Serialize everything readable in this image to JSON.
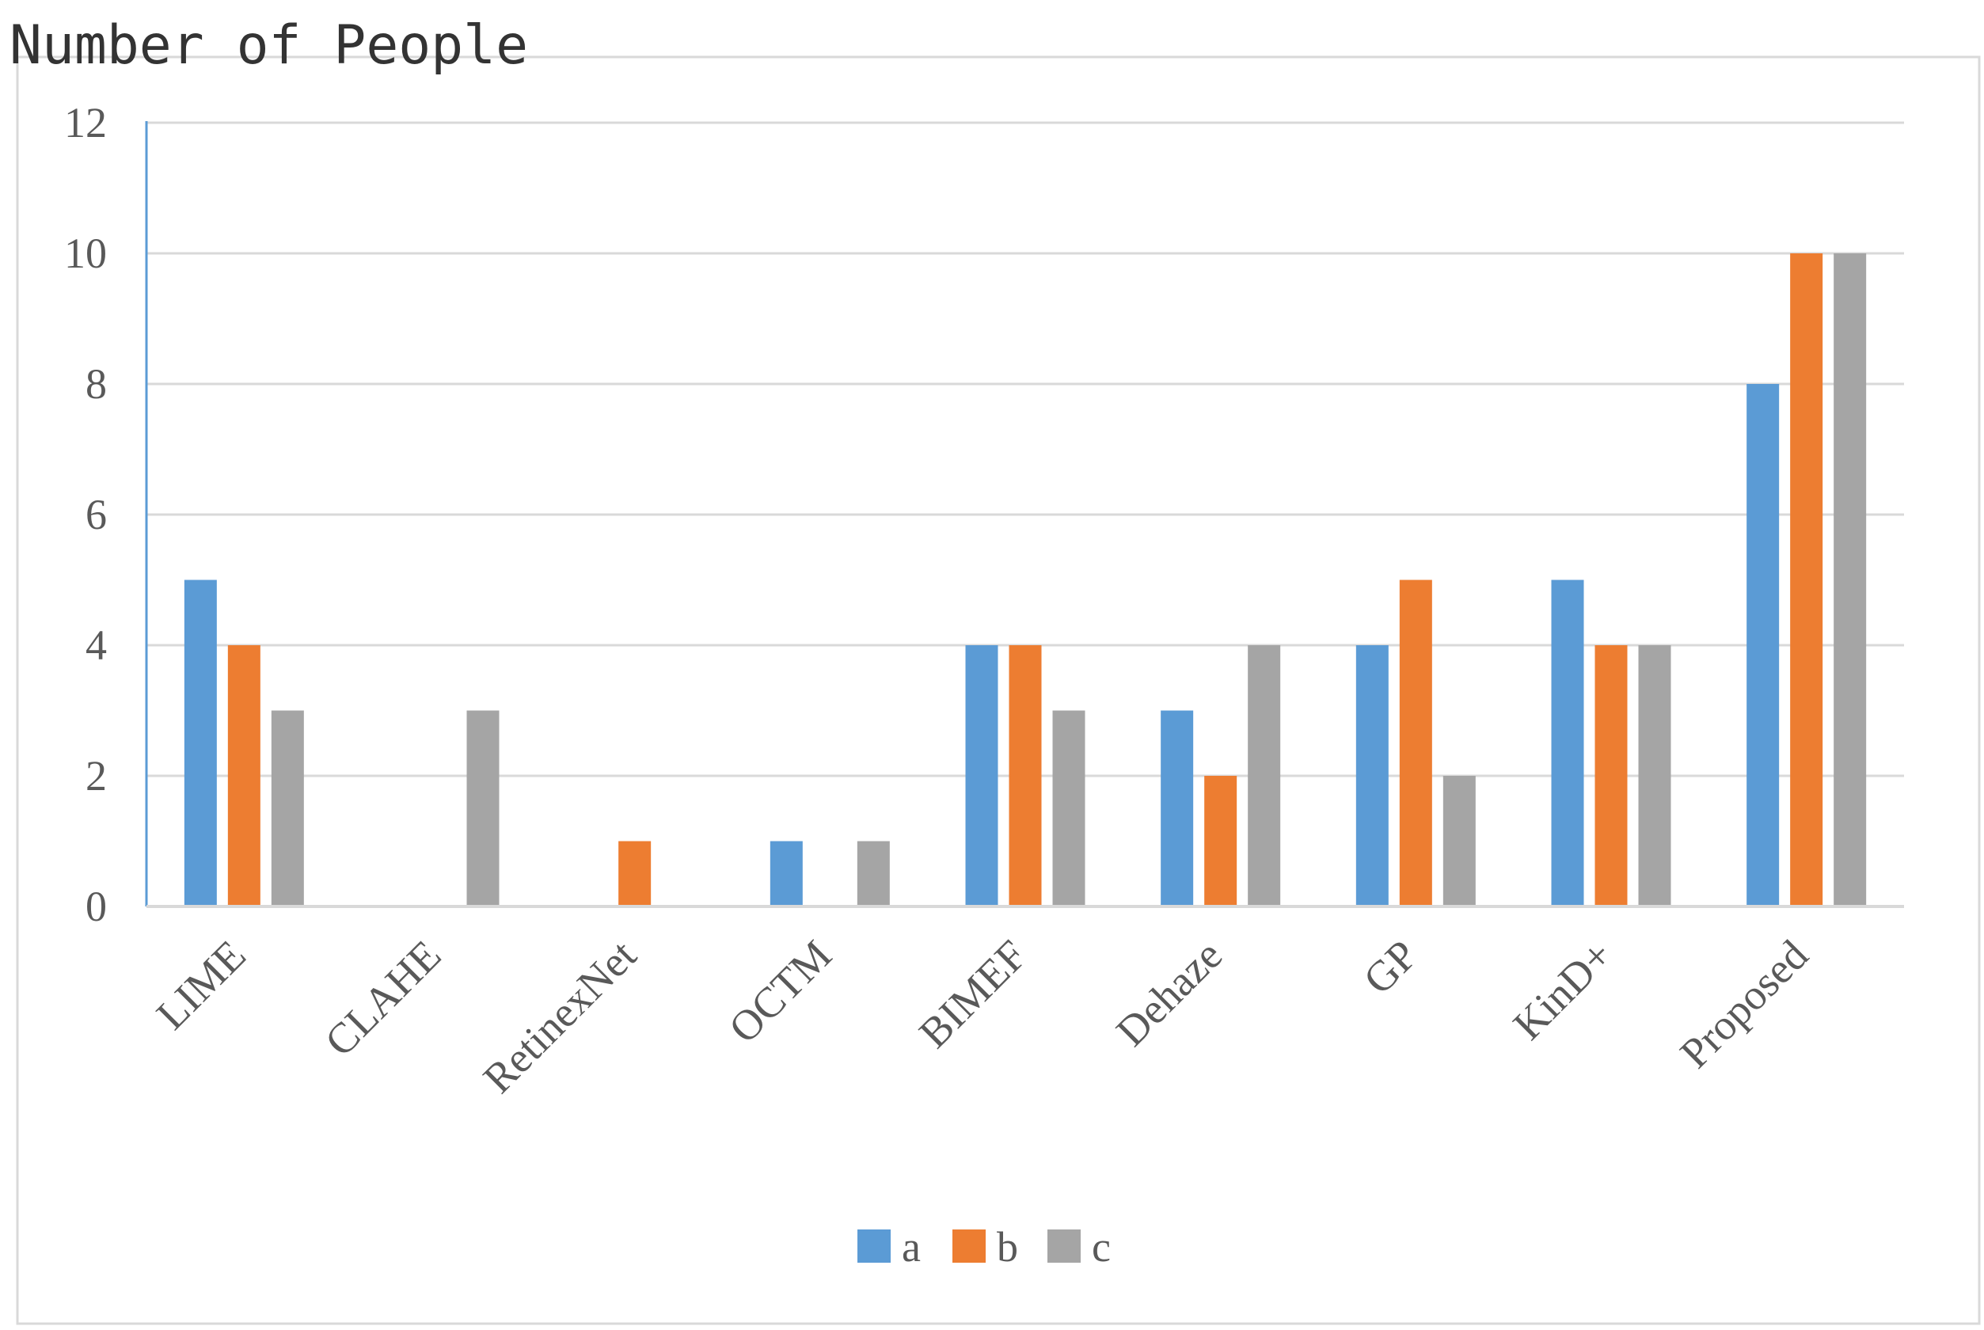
{
  "chart_data": {
    "type": "bar",
    "title": "",
    "xlabel": "",
    "ylabel": "Number of People",
    "ylim": [
      0,
      12
    ],
    "yticks": [
      0,
      2,
      4,
      6,
      8,
      10,
      12
    ],
    "grid": true,
    "legend_position": "bottom",
    "categories": [
      "LIME",
      "CLAHE",
      "RetinexNet",
      "OCTM",
      "BIMEF",
      "Dehaze",
      "GP",
      "KinD+",
      "Proposed"
    ],
    "series": [
      {
        "name": "a",
        "color": "#5b9bd5",
        "values": [
          5,
          0,
          0,
          1,
          4,
          3,
          4,
          5,
          8
        ]
      },
      {
        "name": "b",
        "color": "#ed7d31",
        "values": [
          4,
          0,
          1,
          0,
          4,
          2,
          5,
          4,
          10
        ]
      },
      {
        "name": "c",
        "color": "#a5a5a5",
        "values": [
          3,
          3,
          0,
          1,
          3,
          4,
          2,
          4,
          10
        ]
      }
    ]
  }
}
